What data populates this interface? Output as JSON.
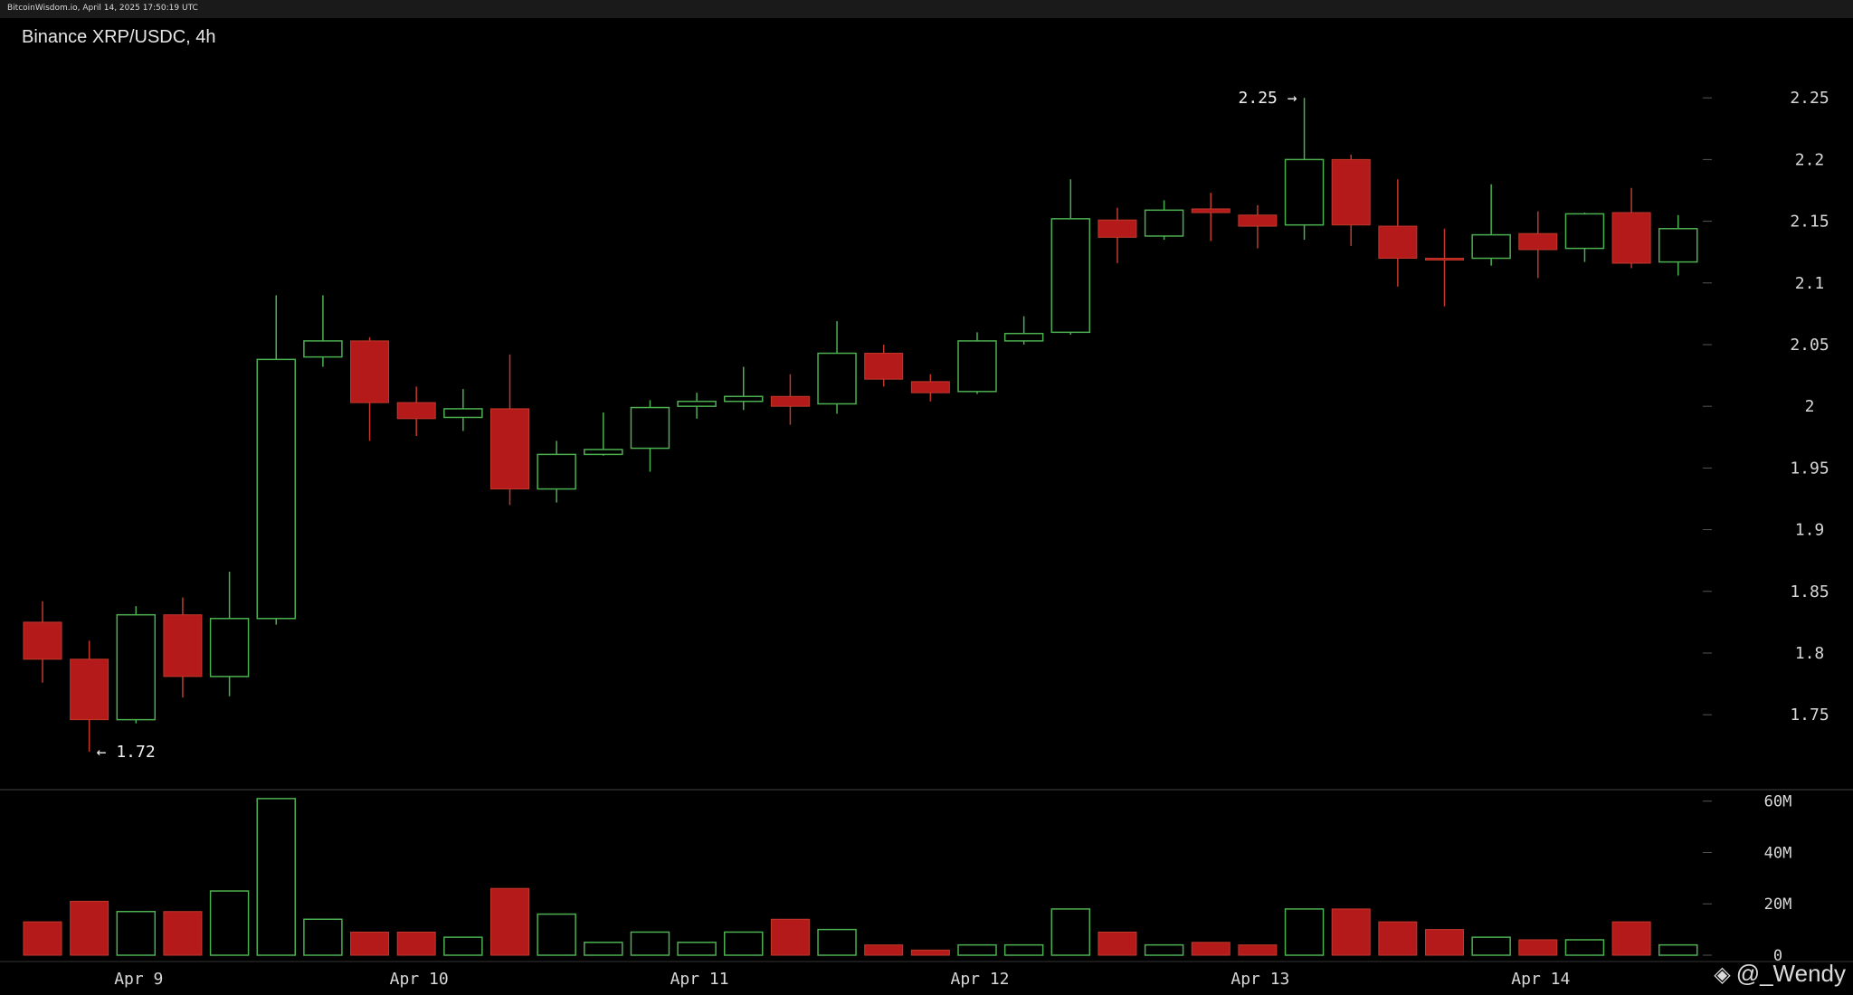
{
  "header": {
    "source_timestamp": "BitcoinWisdom.io, April 14, 2025 17:50:19 UTC",
    "title": "Binance XRP/USDC, 4h"
  },
  "colors": {
    "background": "#000000",
    "up": "#4caf50",
    "down": "#b51a1a",
    "text": "#d8d8d8",
    "separator": "#444444"
  },
  "chart_data": {
    "type": "candlestick",
    "title": "Binance XRP/USDC, 4h",
    "price_axis": {
      "ticks": [
        "1.75",
        "1.8",
        "1.85",
        "1.9",
        "1.95",
        "2",
        "2.05",
        "2.1",
        "2.15",
        "2.2",
        "2.25"
      ],
      "range": [
        1.69,
        2.3
      ]
    },
    "volume_axis": {
      "ticks": [
        "0",
        "20M",
        "40M",
        "60M"
      ],
      "range": [
        0,
        62
      ]
    },
    "x_labels": [
      {
        "text": "Apr 9",
        "index": 2
      },
      {
        "text": "Apr 10",
        "index": 8
      },
      {
        "text": "Apr 11",
        "index": 14
      },
      {
        "text": "Apr 12",
        "index": 20
      },
      {
        "text": "Apr 13",
        "index": 26
      },
      {
        "text": "Apr 14",
        "index": 32
      }
    ],
    "annotations": [
      {
        "text": "2.25 →",
        "price": 2.25,
        "index": 27,
        "side": "left"
      },
      {
        "text": "← 1.72",
        "price": 1.72,
        "index": 1,
        "side": "right"
      }
    ],
    "candles": [
      {
        "o": 1.825,
        "h": 1.842,
        "l": 1.776,
        "c": 1.795,
        "v": 13
      },
      {
        "o": 1.795,
        "h": 1.81,
        "l": 1.72,
        "c": 1.746,
        "v": 21
      },
      {
        "o": 1.746,
        "h": 1.838,
        "l": 1.743,
        "c": 1.831,
        "v": 17
      },
      {
        "o": 1.831,
        "h": 1.845,
        "l": 1.764,
        "c": 1.781,
        "v": 17
      },
      {
        "o": 1.781,
        "h": 1.866,
        "l": 1.765,
        "c": 1.828,
        "v": 25
      },
      {
        "o": 1.828,
        "h": 2.09,
        "l": 1.823,
        "c": 2.038,
        "v": 61
      },
      {
        "o": 2.04,
        "h": 2.09,
        "l": 2.032,
        "c": 2.053,
        "v": 14
      },
      {
        "o": 2.053,
        "h": 2.056,
        "l": 1.972,
        "c": 2.003,
        "v": 9
      },
      {
        "o": 2.003,
        "h": 2.016,
        "l": 1.976,
        "c": 1.99,
        "v": 9
      },
      {
        "o": 1.991,
        "h": 2.014,
        "l": 1.98,
        "c": 1.998,
        "v": 7
      },
      {
        "o": 1.998,
        "h": 2.042,
        "l": 1.92,
        "c": 1.933,
        "v": 26
      },
      {
        "o": 1.933,
        "h": 1.972,
        "l": 1.922,
        "c": 1.961,
        "v": 16
      },
      {
        "o": 1.961,
        "h": 1.995,
        "l": 1.96,
        "c": 1.965,
        "v": 5
      },
      {
        "o": 1.966,
        "h": 2.005,
        "l": 1.947,
        "c": 1.999,
        "v": 9
      },
      {
        "o": 2.0,
        "h": 2.011,
        "l": 1.99,
        "c": 2.004,
        "v": 5
      },
      {
        "o": 2.004,
        "h": 2.032,
        "l": 1.997,
        "c": 2.008,
        "v": 9
      },
      {
        "o": 2.008,
        "h": 2.026,
        "l": 1.985,
        "c": 2.0,
        "v": 14
      },
      {
        "o": 2.002,
        "h": 2.069,
        "l": 1.994,
        "c": 2.043,
        "v": 10
      },
      {
        "o": 2.043,
        "h": 2.05,
        "l": 2.016,
        "c": 2.022,
        "v": 4
      },
      {
        "o": 2.02,
        "h": 2.026,
        "l": 2.004,
        "c": 2.011,
        "v": 2
      },
      {
        "o": 2.012,
        "h": 2.06,
        "l": 2.01,
        "c": 2.053,
        "v": 4
      },
      {
        "o": 2.053,
        "h": 2.073,
        "l": 2.05,
        "c": 2.059,
        "v": 4
      },
      {
        "o": 2.06,
        "h": 2.184,
        "l": 2.058,
        "c": 2.152,
        "v": 18
      },
      {
        "o": 2.151,
        "h": 2.161,
        "l": 2.116,
        "c": 2.137,
        "v": 9
      },
      {
        "o": 2.138,
        "h": 2.167,
        "l": 2.135,
        "c": 2.159,
        "v": 4
      },
      {
        "o": 2.16,
        "h": 2.173,
        "l": 2.134,
        "c": 2.157,
        "v": 5
      },
      {
        "o": 2.155,
        "h": 2.163,
        "l": 2.128,
        "c": 2.146,
        "v": 4
      },
      {
        "o": 2.147,
        "h": 2.25,
        "l": 2.135,
        "c": 2.2,
        "v": 18
      },
      {
        "o": 2.2,
        "h": 2.204,
        "l": 2.13,
        "c": 2.147,
        "v": 18
      },
      {
        "o": 2.146,
        "h": 2.184,
        "l": 2.097,
        "c": 2.12,
        "v": 13
      },
      {
        "o": 2.12,
        "h": 2.144,
        "l": 2.081,
        "c": 2.119,
        "v": 10
      },
      {
        "o": 2.12,
        "h": 2.18,
        "l": 2.114,
        "c": 2.139,
        "v": 7
      },
      {
        "o": 2.14,
        "h": 2.158,
        "l": 2.104,
        "c": 2.127,
        "v": 6
      },
      {
        "o": 2.128,
        "h": 2.157,
        "l": 2.117,
        "c": 2.156,
        "v": 6
      },
      {
        "o": 2.157,
        "h": 2.177,
        "l": 2.112,
        "c": 2.116,
        "v": 13
      },
      {
        "o": 2.117,
        "h": 2.155,
        "l": 2.106,
        "c": 2.144,
        "v": 4
      }
    ]
  },
  "watermark": {
    "icon": "binance-logo-icon",
    "text": "@_Wendy"
  }
}
